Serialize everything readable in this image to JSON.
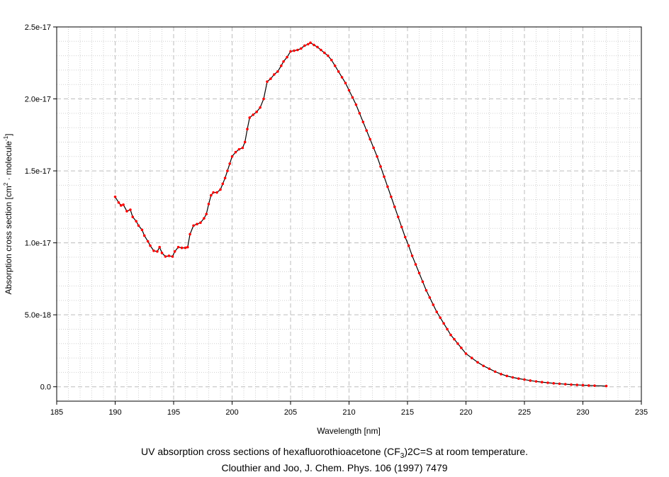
{
  "chart_data": {
    "type": "line",
    "xlabel": "Wavelength [nm]",
    "ylabel_main": "Absorption cross section [cm",
    "ylabel_sup1": "2",
    "ylabel_mid": " · molecule",
    "ylabel_sup2": "-1",
    "ylabel_end": "]",
    "xlim": [
      185,
      235
    ],
    "ylim": [
      -1e-18,
      2.5e-17
    ],
    "xticks": [
      185,
      190,
      195,
      200,
      205,
      210,
      215,
      220,
      225,
      230,
      235
    ],
    "xtick_labels": [
      "185",
      "190",
      "195",
      "200",
      "205",
      "210",
      "215",
      "220",
      "225",
      "230",
      "235"
    ],
    "yticks": [
      0,
      5e-18,
      1e-17,
      1.5e-17,
      2e-17,
      2.5e-17
    ],
    "ytick_labels": [
      "0.0",
      "5.0e-18",
      "1.0e-17",
      "1.5e-17",
      "2.0e-17",
      "2.5e-17"
    ],
    "grid": true,
    "line_color": "#000000",
    "marker_color": "#ff0000",
    "series": [
      {
        "x": [
          190.0,
          190.3,
          190.5,
          190.7,
          191.0,
          191.3,
          191.5,
          191.8,
          192.0,
          192.3,
          192.5,
          192.8,
          193.0,
          193.3,
          193.6,
          193.8,
          194.0,
          194.3,
          194.6,
          194.9,
          195.1,
          195.4,
          195.7,
          196.0,
          196.2,
          196.4,
          196.7,
          197.0,
          197.3,
          197.6,
          197.8,
          198.0,
          198.2,
          198.4,
          198.7,
          199.0,
          199.2,
          199.4,
          199.6,
          199.8,
          200.0,
          200.3,
          200.6,
          200.9,
          201.1,
          201.3,
          201.5,
          201.8,
          202.1,
          202.4,
          202.7,
          203.0,
          203.3,
          203.6,
          203.9,
          204.2,
          204.4,
          204.7,
          205.0,
          205.3,
          205.6,
          205.9,
          206.2,
          206.5,
          206.7,
          207.0,
          207.3,
          207.6,
          207.9,
          208.2,
          208.5,
          208.8,
          209.1,
          209.4,
          209.7,
          210.0,
          210.3,
          210.6,
          210.9,
          211.2,
          211.5,
          211.8,
          212.1,
          212.4,
          212.7,
          213.0,
          213.3,
          213.6,
          213.9,
          214.2,
          214.5,
          214.8,
          215.1,
          215.4,
          215.7,
          216.0,
          216.3,
          216.6,
          216.9,
          217.2,
          217.5,
          217.8,
          218.1,
          218.4,
          218.7,
          219.0,
          219.3,
          219.6,
          220.0,
          220.5,
          221.0,
          221.5,
          222.0,
          222.5,
          223.0,
          223.5,
          224.0,
          224.5,
          225.0,
          225.5,
          226.0,
          226.5,
          227.0,
          227.5,
          228.0,
          228.5,
          229.0,
          229.5,
          230.0,
          230.5,
          231.0,
          232.0
        ],
        "y": [
          1.32e-17,
          1.28e-17,
          1.26e-17,
          1.265e-17,
          1.22e-17,
          1.23e-17,
          1.18e-17,
          1.15e-17,
          1.12e-17,
          1.09e-17,
          1.05e-17,
          1.01e-17,
          9.8e-18,
          9.45e-18,
          9.4e-18,
          9.7e-18,
          9.3e-18,
          9.05e-18,
          9.1e-18,
          9.05e-18,
          9.4e-18,
          9.7e-18,
          9.65e-18,
          9.65e-18,
          9.7e-18,
          1.06e-17,
          1.12e-17,
          1.13e-17,
          1.14e-17,
          1.17e-17,
          1.2e-17,
          1.27e-17,
          1.33e-17,
          1.35e-17,
          1.35e-17,
          1.37e-17,
          1.41e-17,
          1.45e-17,
          1.5e-17,
          1.55e-17,
          1.6e-17,
          1.63e-17,
          1.65e-17,
          1.66e-17,
          1.7e-17,
          1.79e-17,
          1.87e-17,
          1.89e-17,
          1.91e-17,
          1.94e-17,
          2e-17,
          2.12e-17,
          2.14e-17,
          2.17e-17,
          2.19e-17,
          2.23e-17,
          2.26e-17,
          2.29e-17,
          2.33e-17,
          2.335e-17,
          2.34e-17,
          2.35e-17,
          2.37e-17,
          2.38e-17,
          2.39e-17,
          2.375e-17,
          2.36e-17,
          2.34e-17,
          2.32e-17,
          2.3e-17,
          2.27e-17,
          2.23e-17,
          2.19e-17,
          2.15e-17,
          2.11e-17,
          2.06e-17,
          2.01e-17,
          1.96e-17,
          1.9e-17,
          1.84e-17,
          1.78e-17,
          1.72e-17,
          1.66e-17,
          1.6e-17,
          1.53e-17,
          1.46e-17,
          1.39e-17,
          1.32e-17,
          1.25e-17,
          1.18e-17,
          1.11e-17,
          1.04e-17,
          9.8e-18,
          9.1e-18,
          8.5e-18,
          7.9e-18,
          7.3e-18,
          6.7e-18,
          6.2e-18,
          5.7e-18,
          5.2e-18,
          4.8e-18,
          4.4e-18,
          4e-18,
          3.6e-18,
          3.3e-18,
          3e-18,
          2.7e-18,
          2.3e-18,
          2e-18,
          1.7e-18,
          1.45e-18,
          1.25e-18,
          1.05e-18,
          8.8e-19,
          7.5e-19,
          6.5e-19,
          5.7e-19,
          5e-19,
          4.3e-19,
          3.7e-19,
          3.2e-19,
          2.8e-19,
          2.4e-19,
          2.1e-19,
          1.8e-19,
          1.5e-19,
          1.3e-19,
          1.1e-19,
          9e-20,
          7.5e-20,
          5e-20
        ]
      }
    ]
  },
  "caption": {
    "line1_pre": "UV absorption cross sections of hexafluorothioacetone (CF",
    "line1_sub": "3",
    "line1_post": ")2C=S at room temperature.",
    "line2": "Clouthier and Joo, J. Chem. Phys. 106 (1997) 7479"
  }
}
